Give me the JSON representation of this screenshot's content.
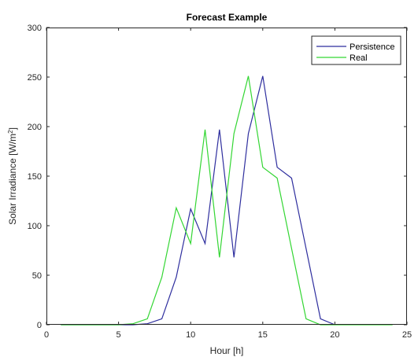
{
  "chart_data": {
    "type": "line",
    "title": "Forecast Example",
    "xlabel": "Hour [h]",
    "ylabel_main": "Solar Irradiance [W/m",
    "ylabel_sup": "2",
    "ylabel_end": "]",
    "xlim": [
      0,
      25
    ],
    "ylim": [
      0,
      300
    ],
    "xticks": [
      0,
      5,
      10,
      15,
      20,
      25
    ],
    "yticks": [
      0,
      50,
      100,
      150,
      200,
      250,
      300
    ],
    "grid": false,
    "legend_position": "top-right",
    "series": [
      {
        "name": "Persistence",
        "color": "#2e2e9e",
        "x": [
          1,
          2,
          3,
          4,
          5,
          6,
          7,
          8,
          9,
          10,
          11,
          12,
          13,
          14,
          15,
          16,
          17,
          18,
          19,
          20
        ],
        "y": [
          0,
          0,
          0,
          0,
          0,
          0,
          1,
          6,
          48,
          117,
          82,
          197,
          68,
          193,
          251,
          159,
          148,
          77,
          6,
          0
        ]
      },
      {
        "name": "Real",
        "color": "#33d633",
        "x": [
          1,
          2,
          3,
          4,
          5,
          6,
          7,
          8,
          9,
          10,
          11,
          12,
          13,
          14,
          15,
          16,
          17,
          18,
          19,
          20,
          21,
          22,
          23,
          24
        ],
        "y": [
          0,
          0,
          0,
          0,
          0,
          1,
          6,
          48,
          118,
          82,
          197,
          68,
          193,
          251,
          159,
          148,
          77,
          6,
          0,
          0,
          0,
          0,
          0,
          0
        ]
      }
    ]
  }
}
